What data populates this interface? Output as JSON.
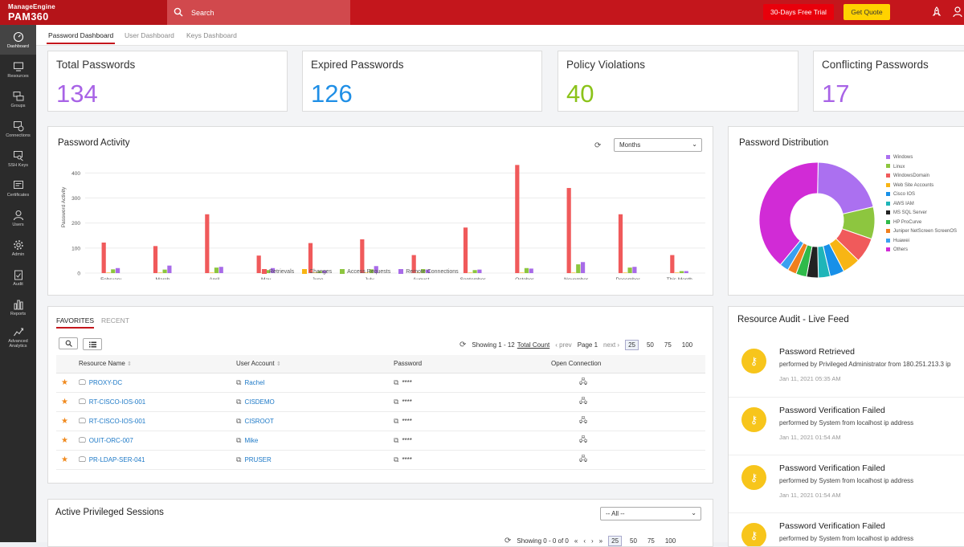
{
  "app": {
    "brand_top": "ManageEngine",
    "brand_name": "PAM360"
  },
  "search": {
    "placeholder": "Search"
  },
  "header": {
    "trial_label": "30-Days Free Trial",
    "quote_label": "Get Quote"
  },
  "sidebar": {
    "items": [
      {
        "label": "Dashboard",
        "icon": "dashboard-icon"
      },
      {
        "label": "Resources",
        "icon": "monitor-icon"
      },
      {
        "label": "Groups",
        "icon": "groups-icon"
      },
      {
        "label": "Connections",
        "icon": "connections-icon"
      },
      {
        "label": "SSH Keys",
        "icon": "key-icon"
      },
      {
        "label": "Certificates",
        "icon": "certificate-icon"
      },
      {
        "label": "Users",
        "icon": "user-icon"
      },
      {
        "label": "Admin",
        "icon": "gear-icon"
      },
      {
        "label": "Audit",
        "icon": "clipboard-icon"
      },
      {
        "label": "Reports",
        "icon": "bar-chart-icon"
      },
      {
        "label": "Advanced Analytics",
        "icon": "analytics-icon"
      }
    ]
  },
  "tabs": [
    "Password Dashboard",
    "User Dashboard",
    "Keys Dashboard"
  ],
  "stats": [
    {
      "title": "Total Passwords",
      "value": "134",
      "color": "#a863e6"
    },
    {
      "title": "Expired Passwords",
      "value": "126",
      "color": "#1f8fe6"
    },
    {
      "title": "Policy Violations",
      "value": "40",
      "color": "#8bc31a"
    },
    {
      "title": "Conflicting Passwords",
      "value": "17",
      "color": "#a863e6"
    }
  ],
  "activity": {
    "title": "Password Activity",
    "period": "Months"
  },
  "distribution": {
    "title": "Password Distribution"
  },
  "chart_data": [
    {
      "type": "bar",
      "title": "Password Activity",
      "xlabel": "Months",
      "ylabel": "Password Activity",
      "ylim": [
        0,
        430
      ],
      "yticks": [
        0,
        100,
        200,
        300,
        400
      ],
      "categories": [
        "February",
        "March",
        "April",
        "May",
        "June",
        "July",
        "August",
        "September",
        "October",
        "November",
        "December",
        "This Month"
      ],
      "series": [
        {
          "name": "Retrievals",
          "color": "#f05a5b",
          "values": [
            122,
            108,
            235,
            70,
            120,
            135,
            72,
            182,
            432,
            340,
            235,
            72
          ]
        },
        {
          "name": "Changes",
          "color": "#f8b514",
          "values": [
            2,
            2,
            2,
            2,
            2,
            2,
            2,
            2,
            2,
            2,
            2,
            2
          ]
        },
        {
          "name": "Access Requests",
          "color": "#8dc63f",
          "values": [
            15,
            14,
            22,
            12,
            8,
            15,
            16,
            12,
            20,
            35,
            22,
            8
          ]
        },
        {
          "name": "Remote Connections",
          "color": "#a86be8",
          "values": [
            20,
            30,
            25,
            20,
            10,
            28,
            14,
            14,
            18,
            44,
            25,
            8
          ]
        }
      ],
      "grid": true,
      "legend": "bottom"
    },
    {
      "type": "pie",
      "title": "Password Distribution",
      "legend": "right",
      "slices": [
        {
          "label": "Windows",
          "color": "#ab70f0",
          "value": 21
        },
        {
          "label": "Linux",
          "color": "#8dc63f",
          "value": 9
        },
        {
          "label": "WindowsDomain",
          "color": "#f05a5b",
          "value": 7
        },
        {
          "label": "Web Site Accounts",
          "color": "#f8b514",
          "value": 5
        },
        {
          "label": "Cisco IOS",
          "color": "#1890e8",
          "value": 4
        },
        {
          "label": "AWS IAM",
          "color": "#1fb5b8",
          "value": 3.3
        },
        {
          "label": "MS SQL Server",
          "color": "#222222",
          "value": 3.3
        },
        {
          "label": "HP ProCurve",
          "color": "#2fba4a",
          "value": 3
        },
        {
          "label": "Juniper NetScreen ScreenOS",
          "color": "#f07f1d",
          "value": 2.5
        },
        {
          "label": "Huawei",
          "color": "#3aa0f0",
          "value": 2.5
        },
        {
          "label": "Others",
          "color": "#d12bd6",
          "value": 39.4
        }
      ]
    }
  ],
  "favorites": {
    "tabs": [
      "FAVORITES",
      "RECENT"
    ],
    "showing": "Showing 1 - 12",
    "total_count": "Total Count",
    "prev": "‹ prev",
    "page": "Page 1",
    "next": "next ›",
    "page_sizes": [
      "25",
      "50",
      "75",
      "100"
    ],
    "columns": [
      "Resource Name",
      "User Account",
      "Password",
      "Open Connection"
    ],
    "rows": [
      {
        "resource": "PROXY-DC",
        "account": "Rachel",
        "password": "****"
      },
      {
        "resource": "RT-CISCO-IOS-001",
        "account": "CISDEMO",
        "password": "****"
      },
      {
        "resource": "RT-CISCO-IOS-001",
        "account": "CISROOT",
        "password": "****"
      },
      {
        "resource": "OUIT-ORC-007",
        "account": "Mike",
        "password": "****"
      },
      {
        "resource": "PR-LDAP-SER-041",
        "account": "PRUSER",
        "password": "****"
      }
    ]
  },
  "audit": {
    "title": "Resource Audit - Live Feed",
    "items": [
      {
        "title": "Password Retrieved",
        "detail": "performed by Privileged Administrator from 180.251.213.3 ip",
        "time": "Jan 11, 2021 05:35 AM"
      },
      {
        "title": "Password Verification Failed",
        "detail": "performed by System from localhost ip address",
        "time": "Jan 11, 2021 01:54 AM"
      },
      {
        "title": "Password Verification Failed",
        "detail": "performed by System from localhost ip address",
        "time": "Jan 11, 2021 01:54 AM"
      },
      {
        "title": "Password Verification Failed",
        "detail": "performed by System from localhost ip address",
        "time": ""
      }
    ]
  },
  "sessions": {
    "title": "Active Privileged Sessions",
    "filter": "-- All --",
    "showing": "Showing 0 - 0 of 0",
    "page_sizes": [
      "25",
      "50",
      "75",
      "100"
    ]
  }
}
